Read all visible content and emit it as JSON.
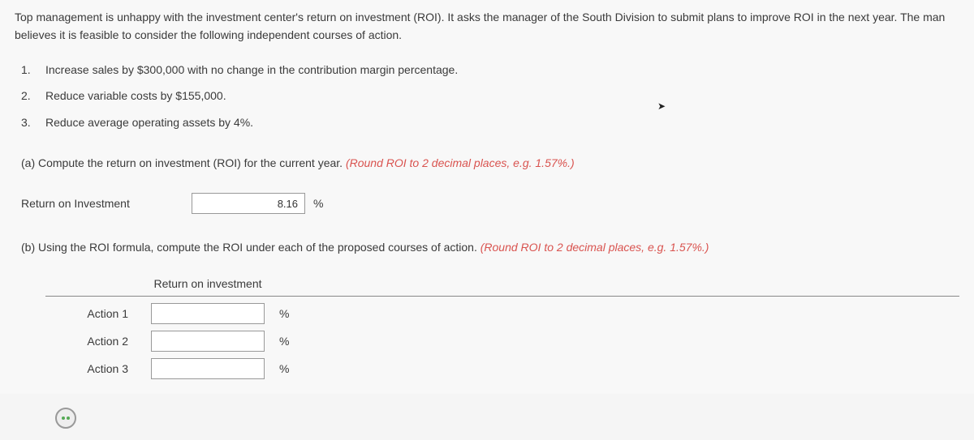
{
  "intro": "Top management is unhappy with the investment center's return on investment (ROI). It asks the manager of the South Division to submit plans to improve ROI in the next year. The man believes it is feasible to consider the following independent courses of action.",
  "list": {
    "items": [
      {
        "num": "1.",
        "text": "Increase sales by $300,000 with no change in the contribution margin percentage."
      },
      {
        "num": "2.",
        "text": "Reduce variable costs by $155,000."
      },
      {
        "num": "3.",
        "text": "Reduce average operating assets by 4%."
      }
    ]
  },
  "partA": {
    "prefix": "(a) ",
    "question": "Compute the return on investment (ROI) for the current year. ",
    "hint": "(Round ROI to 2 decimal places, e.g. 1.57%.)",
    "label": "Return on Investment",
    "value": "8.16",
    "unit": "%"
  },
  "partB": {
    "prefix": "(b) ",
    "question": "Using the ROI formula, compute the ROI under each of the proposed courses of action. ",
    "hint": "(Round ROI to 2 decimal places, e.g. 1.57%.)",
    "tableHeader": "Return on investment",
    "rows": [
      {
        "label": "Action 1",
        "value": "",
        "unit": "%"
      },
      {
        "label": "Action 2",
        "value": "",
        "unit": "%"
      },
      {
        "label": "Action 3",
        "value": "",
        "unit": "%"
      }
    ]
  },
  "colors": {
    "background": "#f8f8f8",
    "text": "#3a3a3a",
    "hint": "#d9534f",
    "inputBorder": "#999999",
    "tableBorder": "#888888"
  },
  "typography": {
    "fontFamily": "Arial, Helvetica, sans-serif",
    "baseFontSize": 14,
    "hintFontStyle": "italic"
  }
}
